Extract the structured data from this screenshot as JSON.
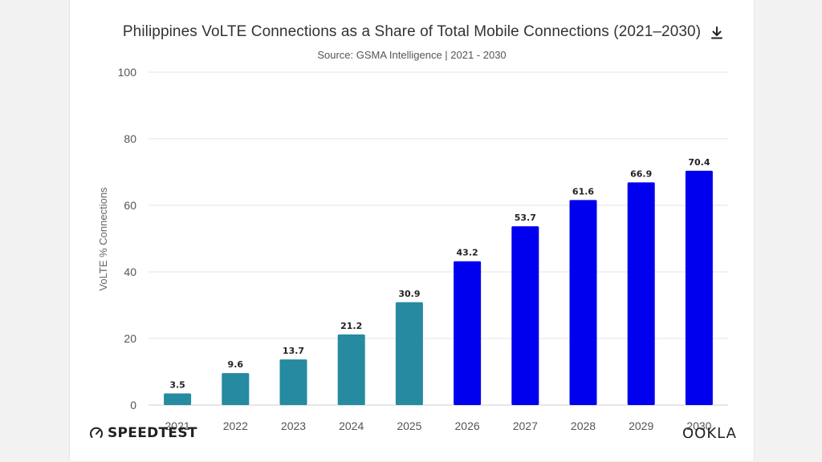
{
  "colors": {
    "past": "#268aa0",
    "forecast": "#0000ee",
    "grid": "#e3e3e3",
    "axis_text": "#555555",
    "label_text": "#222222"
  },
  "download_icon": "download-icon",
  "brand": {
    "left": "SPEEDTEST",
    "left_icon": "gauge-icon",
    "right": "OOKLA"
  },
  "chart_data": {
    "type": "bar",
    "title": "Philippines VoLTE Connections as a Share of Total Mobile Connections (2021–2030)",
    "subtitle": "Source: GSMA Intelligence | 2021 - 2030",
    "xlabel": "",
    "ylabel": "VoLTE % Connections",
    "ylim": [
      0,
      100
    ],
    "yticks": [
      "0",
      "20",
      "40",
      "60",
      "80",
      "100"
    ],
    "categories": [
      "2021",
      "2022",
      "2023",
      "2024",
      "2025",
      "2026",
      "2027",
      "2028",
      "2029",
      "2030"
    ],
    "values": [
      3.5,
      9.6,
      13.7,
      21.2,
      30.9,
      43.2,
      53.7,
      61.6,
      66.9,
      70.4
    ],
    "value_labels": [
      "3.5",
      "9.6",
      "13.7",
      "21.2",
      "30.9",
      "43.2",
      "53.7",
      "61.6",
      "66.9",
      "70.4"
    ],
    "bar_colors": [
      "#268aa0",
      "#268aa0",
      "#268aa0",
      "#268aa0",
      "#268aa0",
      "#0000ee",
      "#0000ee",
      "#0000ee",
      "#0000ee",
      "#0000ee"
    ],
    "grid": true,
    "legend": "none"
  }
}
